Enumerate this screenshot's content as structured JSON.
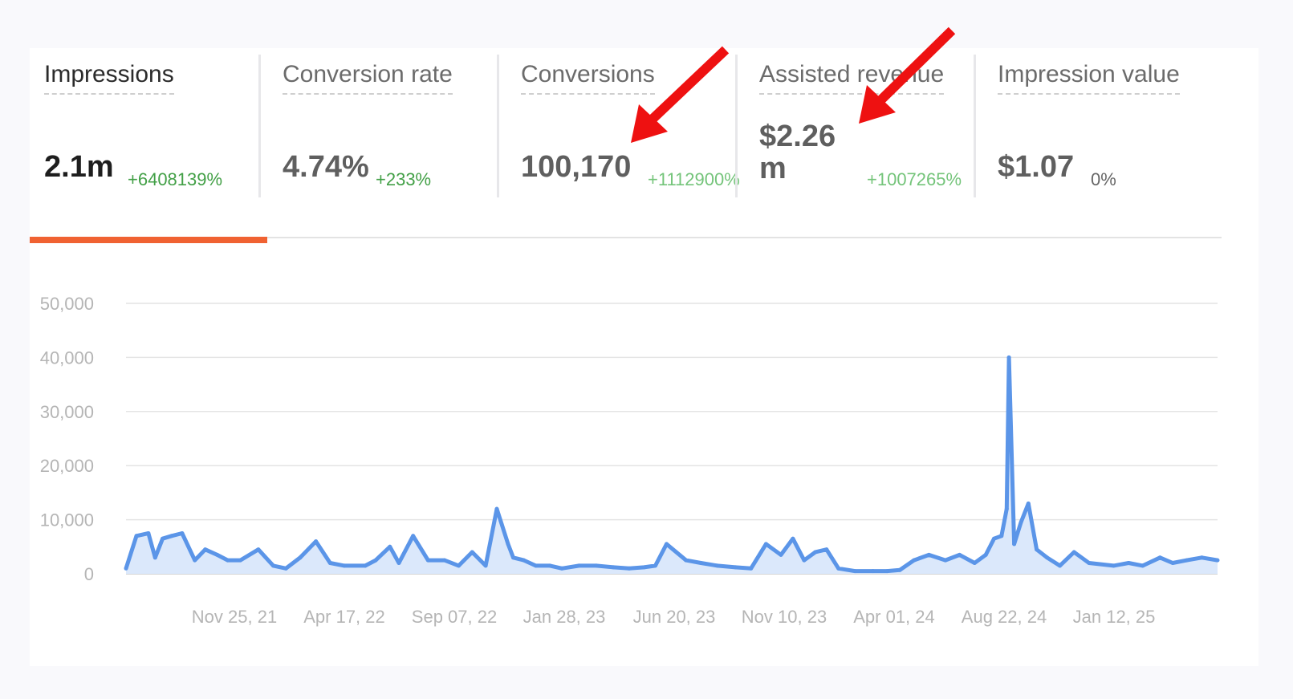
{
  "metrics": [
    {
      "title": "Impressions",
      "value": "2.1m",
      "change": "+6408139%"
    },
    {
      "title": "Conversion rate",
      "value": "4.74%",
      "change": "+233%"
    },
    {
      "title": "Conversions",
      "value": "100,170",
      "change": "+1112900%"
    },
    {
      "title": "Assisted revenue",
      "value": "$2.26 m",
      "change": "+1007265%"
    },
    {
      "title": "Impression value",
      "value": "$1.07",
      "change": "0%"
    }
  ],
  "colors": {
    "accent": "#f06232",
    "series": "#5b95e8",
    "positive": "#43a047",
    "arrow": "#ee1111"
  },
  "chart_data": {
    "type": "area",
    "x_tick_labels": [
      "Nov 25, 21",
      "Apr 17, 22",
      "Sep 07, 22",
      "Jan 28, 23",
      "Jun 20, 23",
      "Nov 10, 23",
      "Apr 01, 24",
      "Aug 22, 24",
      "Jan 12, 25"
    ],
    "y_tick_labels": [
      "0",
      "10,000",
      "20,000",
      "30,000",
      "40,000",
      "50,000"
    ],
    "ylim": [
      0,
      50000
    ],
    "grid": true,
    "series": [
      {
        "x": [
          "2021-06-01",
          "2021-06-15",
          "2021-07-01",
          "2021-07-10",
          "2021-07-20",
          "2021-08-01",
          "2021-08-15",
          "2021-09-01",
          "2021-09-15",
          "2021-10-01",
          "2021-10-15",
          "2021-11-01",
          "2021-11-25",
          "2021-12-15",
          "2022-01-01",
          "2022-01-20",
          "2022-02-10",
          "2022-03-01",
          "2022-03-20",
          "2022-04-17",
          "2022-05-01",
          "2022-05-20",
          "2022-06-01",
          "2022-06-20",
          "2022-07-10",
          "2022-08-01",
          "2022-08-20",
          "2022-09-07",
          "2022-09-25",
          "2022-10-10",
          "2022-10-25",
          "2022-11-01",
          "2022-11-15",
          "2022-12-01",
          "2022-12-20",
          "2023-01-05",
          "2023-01-28",
          "2023-02-20",
          "2023-03-15",
          "2023-04-05",
          "2023-04-25",
          "2023-05-10",
          "2023-05-25",
          "2023-06-20",
          "2023-07-10",
          "2023-08-01",
          "2023-08-25",
          "2023-09-15",
          "2023-10-05",
          "2023-10-25",
          "2023-11-10",
          "2023-11-25",
          "2023-12-10",
          "2023-12-25",
          "2024-01-10",
          "2024-02-01",
          "2024-02-25",
          "2024-03-15",
          "2024-04-01",
          "2024-04-20",
          "2024-05-10",
          "2024-06-01",
          "2024-06-20",
          "2024-07-10",
          "2024-07-25",
          "2024-08-05",
          "2024-08-15",
          "2024-08-22",
          "2024-08-25",
          "2024-09-01",
          "2024-09-10",
          "2024-09-20",
          "2024-10-01",
          "2024-10-15",
          "2024-11-01",
          "2024-11-20",
          "2024-12-10",
          "2025-01-12",
          "2025-02-01",
          "2025-02-20",
          "2025-03-15",
          "2025-04-01",
          "2025-04-20",
          "2025-05-10",
          "2025-05-31"
        ],
        "values": [
          1000,
          7000,
          7500,
          3000,
          6500,
          7000,
          7500,
          2500,
          4500,
          3500,
          2500,
          2500,
          4500,
          1500,
          1000,
          3000,
          6000,
          2000,
          1500,
          1500,
          2500,
          5000,
          2000,
          7000,
          2500,
          2500,
          1500,
          4000,
          1500,
          12000,
          5500,
          3000,
          2500,
          1500,
          1500,
          1000,
          1500,
          1500,
          1200,
          1000,
          1200,
          1500,
          5500,
          2500,
          2000,
          1500,
          1200,
          1000,
          5500,
          3500,
          6500,
          2500,
          4000,
          4500,
          1000,
          500,
          500,
          500,
          700,
          2500,
          3500,
          2500,
          3500,
          2000,
          3500,
          6500,
          7000,
          12000,
          40000,
          5500,
          9500,
          13000,
          4500,
          3000,
          1500,
          4000,
          2000,
          1500,
          2000,
          1500,
          3000,
          2000,
          2500,
          3000,
          2500
        ]
      }
    ]
  }
}
